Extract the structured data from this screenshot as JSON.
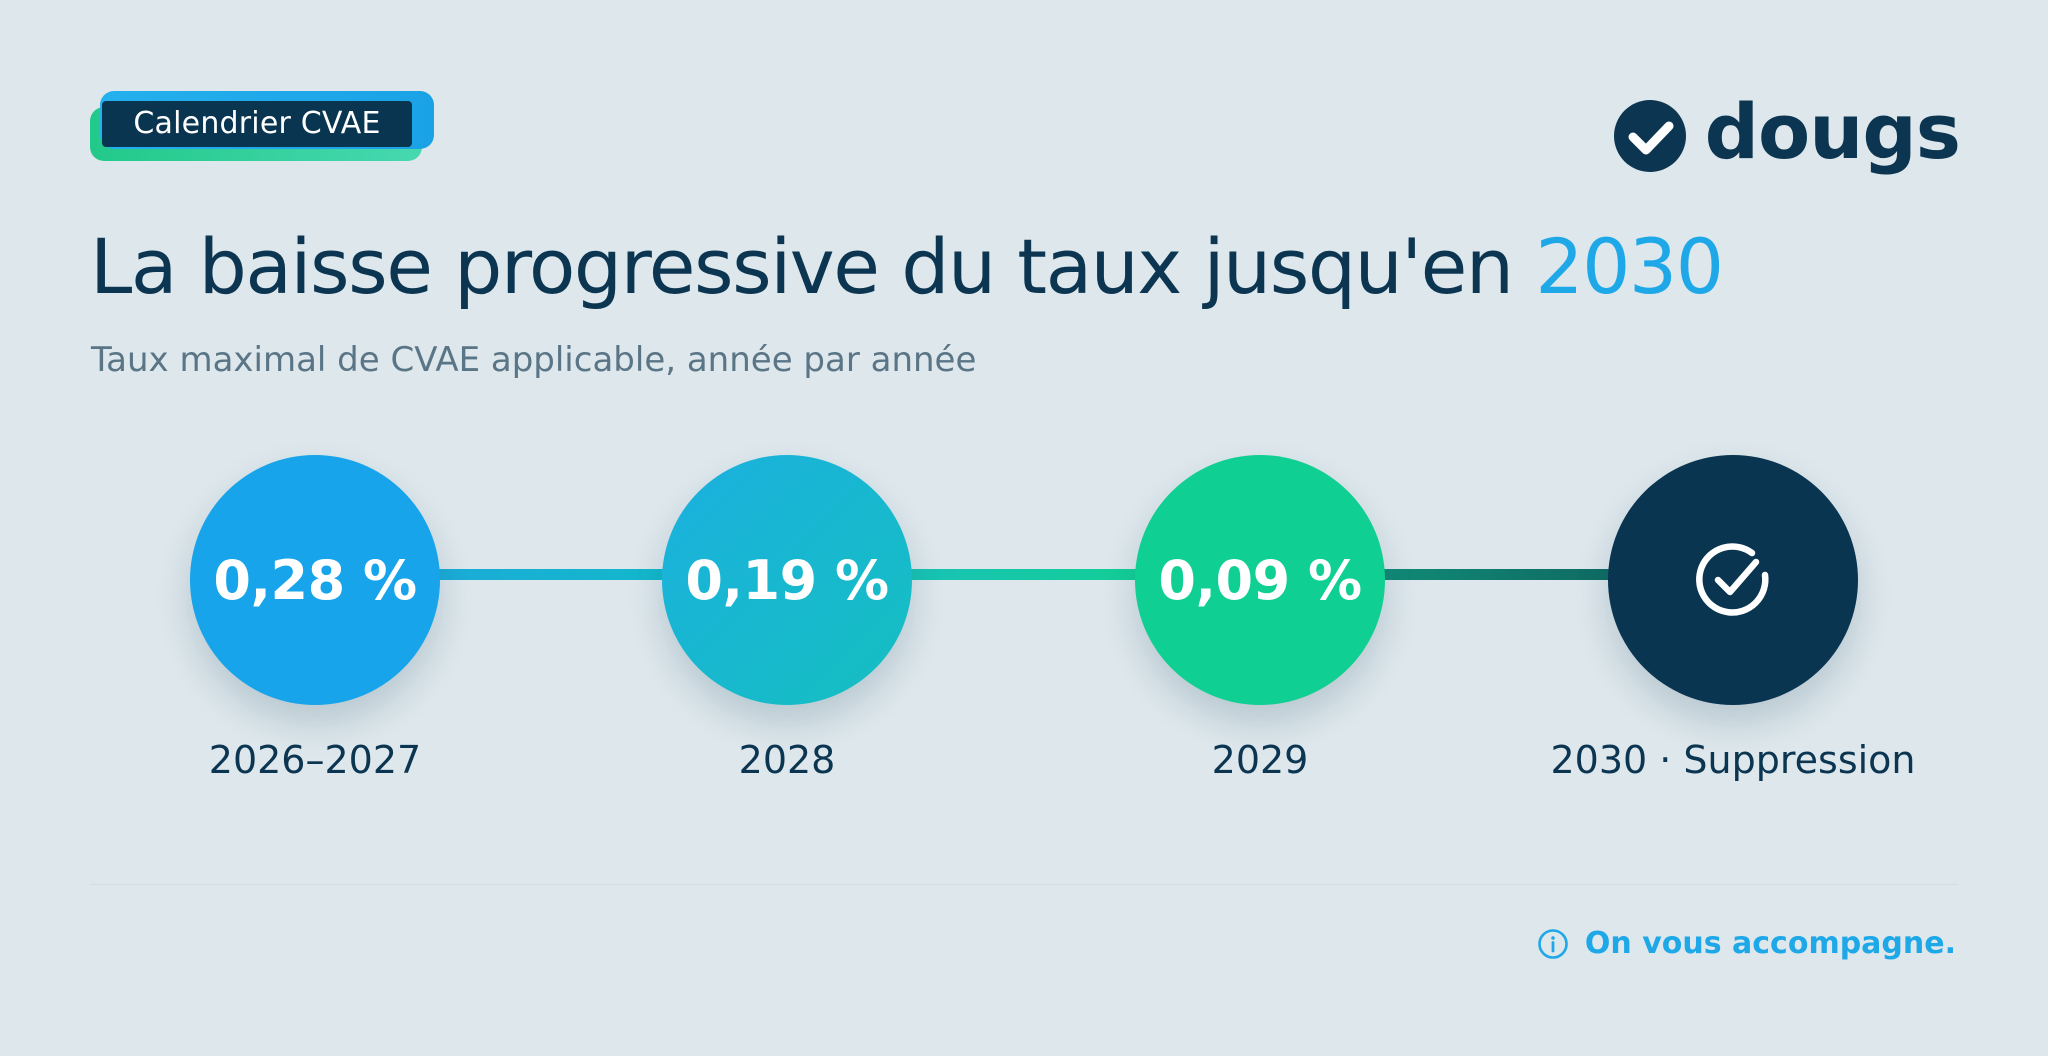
{
  "badge": {
    "label": "Calendrier CVAE"
  },
  "logo": {
    "icon": "check-circle-icon",
    "text": "dougs"
  },
  "header": {
    "title_main": "La baisse progressive du taux jusqu'en ",
    "title_accent": "2030",
    "subtitle": "Taux maximal de CVAE applicable, année par année"
  },
  "timeline": {
    "steps": [
      {
        "value": "0,28 %",
        "label": "2026–2027"
      },
      {
        "value": "0,19 %",
        "label": "2028"
      },
      {
        "value": "0,09 %",
        "label": "2029"
      },
      {
        "icon": "check-circle-icon",
        "label": "2030 · Suppression"
      }
    ]
  },
  "footer": {
    "icon": "info-icon",
    "text": "On vous accompagne."
  },
  "colors": {
    "background": "#dde7ec",
    "navy": "#0b3550",
    "blue": "#17a4ea",
    "teal": "#15bfc0",
    "green": "#10cf92",
    "accent": "#1ea8e8"
  }
}
